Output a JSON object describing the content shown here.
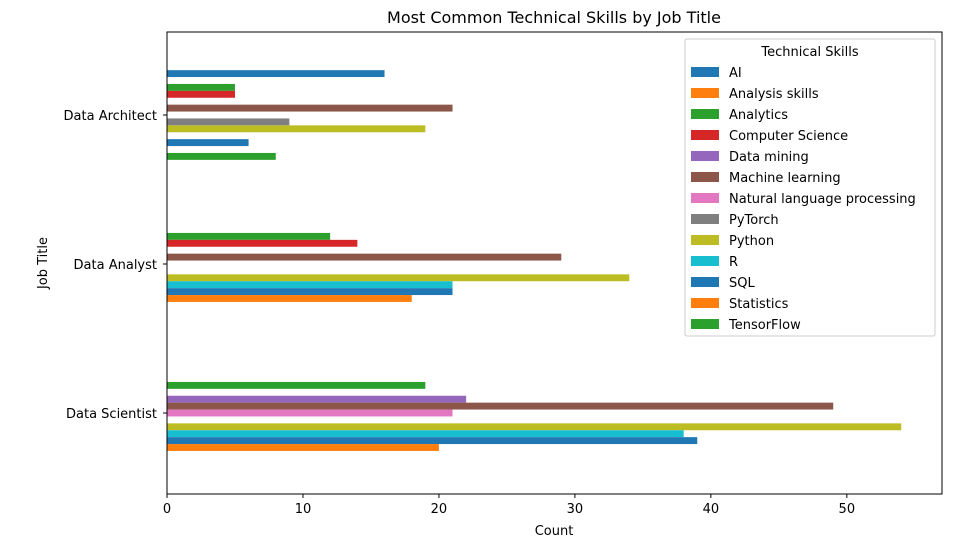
{
  "chart_data": {
    "type": "bar",
    "orientation": "horizontal",
    "title": "Most Common Technical Skills by Job Title",
    "xlabel": "Count",
    "ylabel": "Job Title",
    "xlim": [
      0,
      57
    ],
    "x_ticks": [
      0,
      10,
      20,
      30,
      40,
      50
    ],
    "grid": false,
    "categories": [
      "Data Architect",
      "Data Analyst",
      "Data Scientist"
    ],
    "legend": {
      "title": "Technical Skills",
      "placement": "top-right"
    },
    "series": [
      {
        "name": "AI",
        "color": "#1f77b4",
        "values": [
          16,
          0,
          0
        ]
      },
      {
        "name": "Analysis skills",
        "color": "#ff7f0e",
        "values": [
          0,
          0,
          0
        ]
      },
      {
        "name": "Analytics",
        "color": "#2ca02c",
        "values": [
          5,
          12,
          19
        ]
      },
      {
        "name": "Computer Science",
        "color": "#d62728",
        "values": [
          5,
          14,
          0
        ]
      },
      {
        "name": "Data mining",
        "color": "#9467bd",
        "values": [
          0,
          0,
          22
        ]
      },
      {
        "name": "Machine learning",
        "color": "#8c564b",
        "values": [
          21,
          29,
          49
        ]
      },
      {
        "name": "Natural language processing",
        "color": "#e377c2",
        "values": [
          0,
          0,
          21
        ]
      },
      {
        "name": "PyTorch",
        "color": "#7f7f7f",
        "values": [
          9,
          0,
          0
        ]
      },
      {
        "name": "Python",
        "color": "#bcbd22",
        "values": [
          19,
          34,
          54
        ]
      },
      {
        "name": "R",
        "color": "#17becf",
        "values": [
          0,
          21,
          38
        ]
      },
      {
        "name": "SQL",
        "color": "#1f77b4",
        "values": [
          6,
          21,
          39
        ]
      },
      {
        "name": "Statistics",
        "color": "#ff7f0e",
        "values": [
          0,
          18,
          20
        ]
      },
      {
        "name": "TensorFlow",
        "color": "#2ca02c",
        "values": [
          8,
          0,
          0
        ]
      }
    ]
  }
}
